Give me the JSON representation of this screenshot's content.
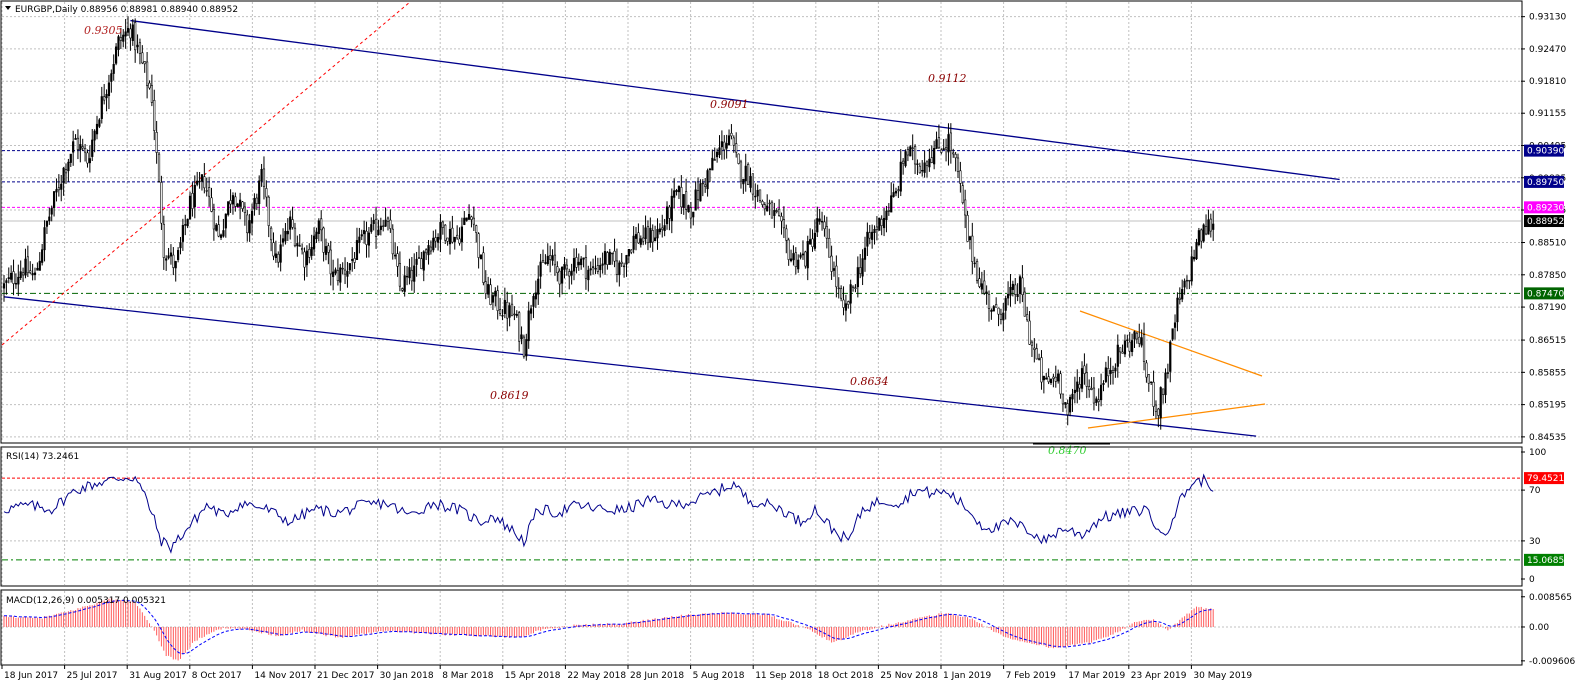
{
  "chart_data": {
    "type": "candlestick",
    "symbol_header": "EURGBP,Daily  0.88956 0.88981 0.88940 0.88952",
    "price_ticks": [
      "0.93130",
      "0.92470",
      "0.91810",
      "0.91155",
      "0.90495",
      "0.89835",
      "0.89175",
      "0.88510",
      "0.87850",
      "0.87190",
      "0.86515",
      "0.85855",
      "0.85195",
      "0.84535"
    ],
    "price_range": [
      0.8443,
      0.9343
    ],
    "date_labels": [
      "18 Jun 2017",
      "25 Jul 2017",
      "31 Aug 2017",
      "8 Oct 2017",
      "14 Nov 2017",
      "21 Dec 2017",
      "30 Jan 2018",
      "8 Mar 2018",
      "15 Apr 2018",
      "22 May 2018",
      "28 Jun 2018",
      "5 Aug 2018",
      "11 Sep 2018",
      "18 Oct 2018",
      "25 Nov 2018",
      "1 Jan 2019",
      "7 Feb 2019",
      "17 Mar 2019",
      "23 Apr 2019",
      "30 May 2019"
    ],
    "close_path_keypoints": [
      [
        0,
        0.876
      ],
      [
        8,
        0.88
      ],
      [
        13,
        0.878
      ],
      [
        18,
        0.889
      ],
      [
        25,
        0.9
      ],
      [
        30,
        0.906
      ],
      [
        35,
        0.902
      ],
      [
        40,
        0.912
      ],
      [
        48,
        0.926
      ],
      [
        53,
        0.929
      ],
      [
        57,
        0.923
      ],
      [
        62,
        0.915
      ],
      [
        67,
        0.884
      ],
      [
        72,
        0.88
      ],
      [
        78,
        0.893
      ],
      [
        84,
        0.898
      ],
      [
        90,
        0.886
      ],
      [
        96,
        0.896
      ],
      [
        102,
        0.888
      ],
      [
        108,
        0.898
      ],
      [
        114,
        0.881
      ],
      [
        120,
        0.889
      ],
      [
        126,
        0.882
      ],
      [
        132,
        0.888
      ],
      [
        138,
        0.878
      ],
      [
        144,
        0.88
      ],
      [
        150,
        0.885
      ],
      [
        156,
        0.888
      ],
      [
        160,
        0.891
      ],
      [
        166,
        0.876
      ],
      [
        172,
        0.879
      ],
      [
        178,
        0.885
      ],
      [
        184,
        0.888
      ],
      [
        190,
        0.886
      ],
      [
        196,
        0.892
      ],
      [
        202,
        0.875
      ],
      [
        208,
        0.872
      ],
      [
        214,
        0.87
      ],
      [
        218,
        0.864
      ],
      [
        222,
        0.876
      ],
      [
        228,
        0.882
      ],
      [
        234,
        0.878
      ],
      [
        240,
        0.882
      ],
      [
        246,
        0.879
      ],
      [
        252,
        0.882
      ],
      [
        258,
        0.88
      ],
      [
        264,
        0.886
      ],
      [
        270,
        0.886
      ],
      [
        276,
        0.888
      ],
      [
        282,
        0.895
      ],
      [
        288,
        0.892
      ],
      [
        294,
        0.898
      ],
      [
        300,
        0.904
      ],
      [
        304,
        0.907
      ],
      [
        308,
        0.9
      ],
      [
        312,
        0.899
      ],
      [
        318,
        0.893
      ],
      [
        324,
        0.89
      ],
      [
        330,
        0.882
      ],
      [
        336,
        0.882
      ],
      [
        342,
        0.89
      ],
      [
        348,
        0.879
      ],
      [
        352,
        0.87
      ],
      [
        356,
        0.876
      ],
      [
        362,
        0.885
      ],
      [
        368,
        0.89
      ],
      [
        374,
        0.895
      ],
      [
        378,
        0.904
      ],
      [
        384,
        0.901
      ],
      [
        390,
        0.904
      ],
      [
        396,
        0.906
      ],
      [
        400,
        0.899
      ],
      [
        404,
        0.886
      ],
      [
        410,
        0.876
      ],
      [
        416,
        0.87
      ],
      [
        420,
        0.873
      ],
      [
        426,
        0.876
      ],
      [
        430,
        0.866
      ],
      [
        436,
        0.856
      ],
      [
        442,
        0.858
      ],
      [
        446,
        0.85
      ],
      [
        452,
        0.859
      ],
      [
        458,
        0.853
      ],
      [
        464,
        0.86
      ],
      [
        470,
        0.864
      ],
      [
        476,
        0.866
      ],
      [
        480,
        0.856
      ],
      [
        484,
        0.851
      ],
      [
        488,
        0.86
      ],
      [
        492,
        0.872
      ],
      [
        496,
        0.877
      ],
      [
        500,
        0.885
      ],
      [
        504,
        0.888
      ],
      [
        507,
        0.8895
      ]
    ],
    "channel_lines": [
      {
        "from": [
          53,
          0.9305
        ],
        "to": [
          560,
          0.898
        ]
      },
      {
        "from": [
          0,
          0.874
        ],
        "to": [
          525,
          0.8455
        ]
      }
    ],
    "horizontal_levels": [
      0.9039,
      0.8975,
      0.8923,
      0.8895,
      0.8747
    ],
    "price_tags": [
      "0.90390",
      "0.89750",
      "0.89230",
      "0.88952",
      "0.87470"
    ],
    "price_tag_colors": [
      "#00008b",
      "#00008b",
      "#ff00ff",
      "#000000",
      "#006400"
    ],
    "annotations": [
      {
        "text": "0.9305",
        "price": 0.9305,
        "bar": 40,
        "color": "#b22222"
      },
      {
        "text": "0.9091",
        "price": 0.9091,
        "bar": 328,
        "color": "#8b0000"
      },
      {
        "text": "0.9112",
        "price": 0.9112,
        "bar": 425,
        "color": "#8b0000"
      },
      {
        "text": "0.8619",
        "price": 0.8619,
        "bar": 228,
        "color": "#8b0000"
      },
      {
        "text": "0.8634",
        "price": 0.8634,
        "bar": 390,
        "color": "#8b0000"
      },
      {
        "text": "0.8470",
        "price": 0.847,
        "bar": 472,
        "color": "#32cd32"
      }
    ],
    "rsi": {
      "label": "RSI(14) 73.2461",
      "ticks": [
        "100",
        "70",
        "30",
        "0"
      ],
      "levels": [
        79.4521,
        15.0685
      ],
      "level_tags": [
        "79.4521",
        "15.0685"
      ],
      "level_colors": [
        "#ff0000",
        "#008000"
      ],
      "keypoints": [
        [
          0,
          55
        ],
        [
          10,
          58
        ],
        [
          20,
          55
        ],
        [
          30,
          70
        ],
        [
          40,
          76
        ],
        [
          50,
          80
        ],
        [
          55,
          80
        ],
        [
          60,
          62
        ],
        [
          66,
          30
        ],
        [
          70,
          25
        ],
        [
          78,
          42
        ],
        [
          85,
          58
        ],
        [
          92,
          50
        ],
        [
          100,
          60
        ],
        [
          110,
          55
        ],
        [
          120,
          45
        ],
        [
          130,
          55
        ],
        [
          140,
          52
        ],
        [
          150,
          58
        ],
        [
          160,
          60
        ],
        [
          170,
          50
        ],
        [
          180,
          60
        ],
        [
          190,
          55
        ],
        [
          200,
          45
        ],
        [
          205,
          50
        ],
        [
          212,
          40
        ],
        [
          218,
          30
        ],
        [
          224,
          55
        ],
        [
          232,
          52
        ],
        [
          240,
          58
        ],
        [
          250,
          55
        ],
        [
          260,
          54
        ],
        [
          270,
          62
        ],
        [
          280,
          58
        ],
        [
          290,
          62
        ],
        [
          300,
          70
        ],
        [
          306,
          75
        ],
        [
          312,
          62
        ],
        [
          318,
          60
        ],
        [
          326,
          55
        ],
        [
          334,
          45
        ],
        [
          340,
          55
        ],
        [
          348,
          38
        ],
        [
          354,
          30
        ],
        [
          360,
          55
        ],
        [
          368,
          62
        ],
        [
          376,
          60
        ],
        [
          382,
          70
        ],
        [
          388,
          68
        ],
        [
          396,
          68
        ],
        [
          404,
          55
        ],
        [
          410,
          42
        ],
        [
          416,
          40
        ],
        [
          422,
          45
        ],
        [
          430,
          38
        ],
        [
          436,
          30
        ],
        [
          444,
          40
        ],
        [
          452,
          35
        ],
        [
          460,
          48
        ],
        [
          470,
          52
        ],
        [
          480,
          55
        ],
        [
          484,
          35
        ],
        [
          488,
          40
        ],
        [
          494,
          65
        ],
        [
          498,
          75
        ],
        [
          503,
          78
        ],
        [
          507,
          73
        ]
      ]
    },
    "macd": {
      "label": "MACD(12,26,9) 0.005317 0.005321",
      "ticks": [
        "0.008565",
        "0.00",
        "-0.009606"
      ],
      "range": [
        -0.0105,
        0.0102
      ],
      "keypoints": [
        [
          0,
          0.003
        ],
        [
          15,
          0.0025
        ],
        [
          25,
          0.004
        ],
        [
          35,
          0.006
        ],
        [
          45,
          0.008
        ],
        [
          55,
          0.007
        ],
        [
          62,
          0.0
        ],
        [
          68,
          -0.008
        ],
        [
          73,
          -0.0096
        ],
        [
          80,
          -0.004
        ],
        [
          90,
          -0.0005
        ],
        [
          100,
          -0.0005
        ],
        [
          115,
          -0.0025
        ],
        [
          125,
          -0.001
        ],
        [
          140,
          -0.003
        ],
        [
          160,
          -0.001
        ],
        [
          180,
          -0.002
        ],
        [
          200,
          -0.0025
        ],
        [
          215,
          -0.003
        ],
        [
          225,
          -0.001
        ],
        [
          240,
          0.0005
        ],
        [
          260,
          0.001
        ],
        [
          280,
          0.003
        ],
        [
          300,
          0.004
        ],
        [
          320,
          0.0035
        ],
        [
          335,
          0.0
        ],
        [
          348,
          -0.0045
        ],
        [
          360,
          -0.001
        ],
        [
          380,
          0.002
        ],
        [
          395,
          0.004
        ],
        [
          405,
          0.0025
        ],
        [
          420,
          -0.003
        ],
        [
          440,
          -0.006
        ],
        [
          455,
          -0.0045
        ],
        [
          465,
          -0.002
        ],
        [
          475,
          0.0015
        ],
        [
          482,
          0.002
        ],
        [
          488,
          -0.001
        ],
        [
          495,
          0.003
        ],
        [
          500,
          0.0055
        ],
        [
          507,
          0.0053
        ]
      ]
    }
  }
}
